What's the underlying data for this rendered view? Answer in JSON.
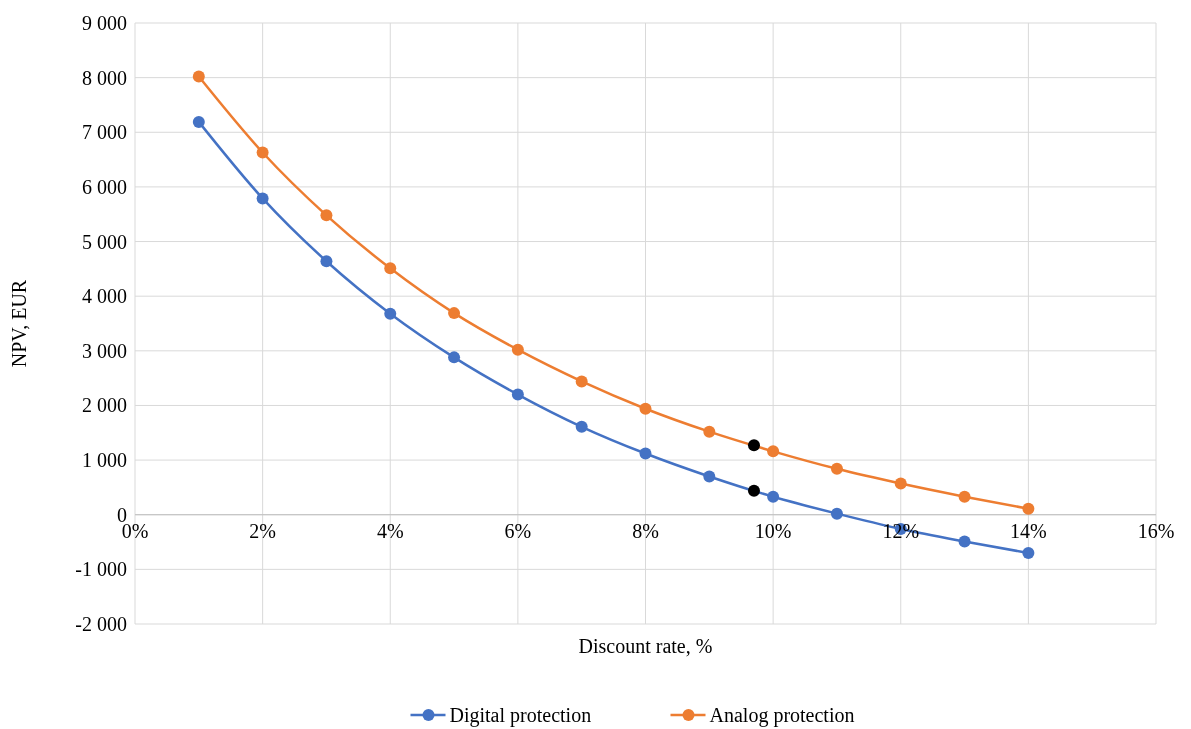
{
  "chart_data": {
    "type": "line",
    "xlabel": "Discount rate, %",
    "ylabel": "NPV, EUR",
    "x": [
      1,
      2,
      3,
      4,
      5,
      6,
      7,
      8,
      9,
      10,
      11,
      12,
      13,
      14
    ],
    "series": [
      {
        "name": "Digital protection",
        "color": "#4472c4",
        "values": [
          7190,
          5790,
          4640,
          3680,
          2880,
          2200,
          1610,
          1120,
          700,
          330,
          20,
          -260,
          -490,
          -700
        ]
      },
      {
        "name": "Analog protection",
        "color": "#ed7d31",
        "values": [
          8020,
          6630,
          5480,
          4510,
          3690,
          3020,
          2440,
          1940,
          1520,
          1160,
          840,
          570,
          330,
          110
        ]
      },
      {
        "type": "scatter",
        "color": "#000000",
        "x": [
          9.7,
          9.7
        ],
        "values": [
          1270,
          440
        ]
      }
    ],
    "xlim": [
      0,
      16
    ],
    "xticks": [
      {
        "value": 0,
        "label": "0%"
      },
      {
        "value": 2,
        "label": "2%"
      },
      {
        "value": 4,
        "label": "4%"
      },
      {
        "value": 6,
        "label": "6%"
      },
      {
        "value": 8,
        "label": "8%"
      },
      {
        "value": 10,
        "label": "10%"
      },
      {
        "value": 12,
        "label": "12%"
      },
      {
        "value": 14,
        "label": "14%"
      },
      {
        "value": 16,
        "label": "16%"
      }
    ],
    "ylim": [
      -2000,
      9000
    ],
    "yticks": [
      {
        "value": -2000,
        "label": "-2 000"
      },
      {
        "value": -1000,
        "label": "-1 000"
      },
      0,
      {
        "value": 1000,
        "label": "1 000"
      },
      {
        "value": 2000,
        "label": "2 000"
      },
      {
        "value": 3000,
        "label": "3 000"
      },
      {
        "value": 4000,
        "label": "4 000"
      },
      {
        "value": 5000,
        "label": "5 000"
      },
      {
        "value": 6000,
        "label": "6 000"
      },
      {
        "value": 7000,
        "label": "7 000"
      },
      {
        "value": 8000,
        "label": "8 000"
      },
      {
        "value": 9000,
        "label": "9 000"
      }
    ],
    "grid": true,
    "legend": "bottom",
    "marker": "circle",
    "line_style": "solid"
  }
}
